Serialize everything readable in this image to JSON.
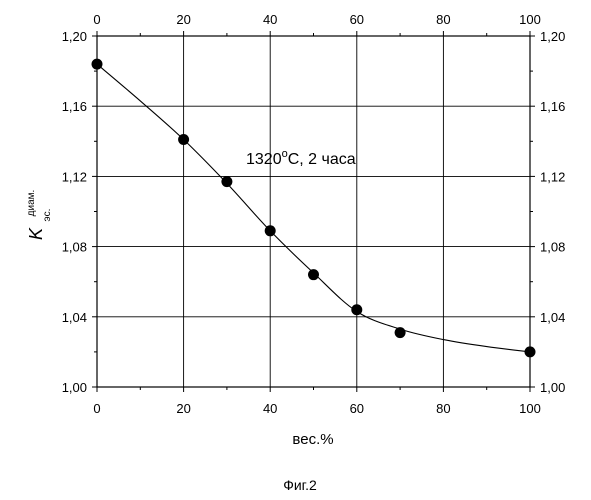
{
  "chart_data": {
    "type": "line",
    "title": "",
    "xlabel": "вес.%",
    "ylabel": {
      "main": "K",
      "subscript": "эс.",
      "superscript": "диам."
    },
    "xlim": [
      0,
      100
    ],
    "ylim": [
      1.0,
      1.2
    ],
    "x_ticks": [
      0,
      20,
      40,
      60,
      80,
      100
    ],
    "x_tick_labels": [
      "0",
      "20",
      "40",
      "60",
      "80",
      "100"
    ],
    "y_ticks": [
      1.0,
      1.04,
      1.08,
      1.12,
      1.16,
      1.2
    ],
    "y_tick_labels": [
      "1,00",
      "1,04",
      "1,08",
      "1,12",
      "1,16",
      "1,20"
    ],
    "top_axis_tick_labels": [
      "0",
      "20",
      "40",
      "60",
      "80",
      "100"
    ],
    "right_axis_tick_labels": [
      "1,00",
      "1,04",
      "1,08",
      "1,12",
      "1,16",
      "1,20"
    ],
    "grid": true,
    "legend": "none",
    "annotation": {
      "text": "1320",
      "superscript": "o",
      "suffix": "C, 2 часа"
    },
    "caption": "Фиг.2",
    "colors": {
      "line": "#000000",
      "marker": "#000000",
      "grid": "#000000"
    },
    "series": [
      {
        "x": [
          0,
          20,
          30,
          40,
          50,
          60,
          70,
          100
        ],
        "y": [
          1.184,
          1.141,
          1.117,
          1.089,
          1.064,
          1.044,
          1.031,
          1.02
        ]
      }
    ],
    "curve": {
      "x": [
        0,
        10,
        20,
        30,
        40,
        50,
        60,
        70,
        80,
        90,
        100
      ],
      "y": [
        1.184,
        1.163,
        1.141,
        1.116,
        1.089,
        1.065,
        1.043,
        1.033,
        1.027,
        1.023,
        1.02
      ]
    }
  }
}
